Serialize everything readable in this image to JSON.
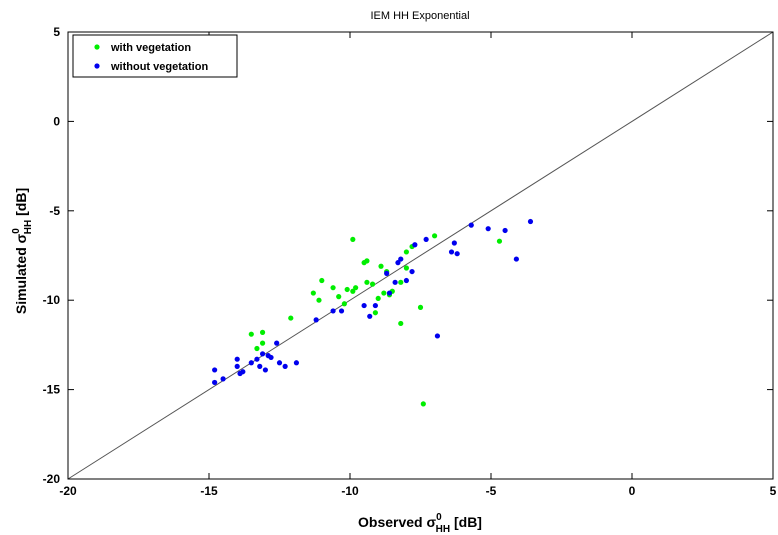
{
  "chart_data": {
    "type": "scatter",
    "title": "IEM HH Exponential",
    "xlabel": {
      "prefix": "Observed ",
      "symbol": "σ",
      "sup": "0",
      "sub": "HH",
      "suffix": " [dB]"
    },
    "ylabel": {
      "prefix": "Simulated ",
      "symbol": "σ",
      "sup": "0",
      "sub": "HH",
      "suffix": " [dB]"
    },
    "xlim": [
      -20,
      5
    ],
    "ylim": [
      -20,
      5
    ],
    "xticks": [
      -20,
      -15,
      -10,
      -5,
      0,
      5
    ],
    "yticks": [
      -20,
      -15,
      -10,
      -5,
      0,
      5
    ],
    "grid": false,
    "legend_position": "top-left",
    "reference_line": {
      "type": "1:1",
      "color": "#555555"
    },
    "series": [
      {
        "name": "with vegetation",
        "color": "#00ee00",
        "points": [
          [
            -13.5,
            -11.9
          ],
          [
            -13.3,
            -12.7
          ],
          [
            -13.1,
            -11.8
          ],
          [
            -13.1,
            -12.4
          ],
          [
            -12.1,
            -11.0
          ],
          [
            -11.3,
            -9.6
          ],
          [
            -11.1,
            -10.0
          ],
          [
            -11.0,
            -8.9
          ],
          [
            -10.6,
            -9.3
          ],
          [
            -10.4,
            -9.8
          ],
          [
            -10.2,
            -10.2
          ],
          [
            -10.1,
            -9.4
          ],
          [
            -9.9,
            -9.5
          ],
          [
            -9.9,
            -6.6
          ],
          [
            -9.8,
            -9.3
          ],
          [
            -9.5,
            -7.9
          ],
          [
            -9.4,
            -9.0
          ],
          [
            -9.4,
            -7.8
          ],
          [
            -9.2,
            -9.1
          ],
          [
            -9.1,
            -10.7
          ],
          [
            -9.0,
            -9.9
          ],
          [
            -8.9,
            -8.1
          ],
          [
            -8.8,
            -9.6
          ],
          [
            -8.7,
            -8.4
          ],
          [
            -8.6,
            -9.7
          ],
          [
            -8.5,
            -9.5
          ],
          [
            -8.2,
            -9.0
          ],
          [
            -8.2,
            -11.3
          ],
          [
            -8.0,
            -8.2
          ],
          [
            -8.0,
            -7.3
          ],
          [
            -7.8,
            -7.0
          ],
          [
            -7.5,
            -10.4
          ],
          [
            -7.4,
            -15.8
          ],
          [
            -7.0,
            -6.4
          ],
          [
            -4.7,
            -6.7
          ]
        ]
      },
      {
        "name": "without vegetation",
        "color": "#0000ee",
        "points": [
          [
            -14.8,
            -13.9
          ],
          [
            -14.8,
            -14.6
          ],
          [
            -14.5,
            -14.4
          ],
          [
            -14.0,
            -13.3
          ],
          [
            -14.0,
            -13.7
          ],
          [
            -13.9,
            -14.1
          ],
          [
            -13.8,
            -14.0
          ],
          [
            -13.5,
            -13.5
          ],
          [
            -13.3,
            -13.3
          ],
          [
            -13.2,
            -13.7
          ],
          [
            -13.1,
            -13.0
          ],
          [
            -13.0,
            -13.9
          ],
          [
            -12.9,
            -13.1
          ],
          [
            -12.8,
            -13.2
          ],
          [
            -12.6,
            -12.4
          ],
          [
            -12.5,
            -13.5
          ],
          [
            -12.3,
            -13.7
          ],
          [
            -11.9,
            -13.5
          ],
          [
            -11.2,
            -11.1
          ],
          [
            -10.6,
            -10.6
          ],
          [
            -10.3,
            -10.6
          ],
          [
            -9.5,
            -10.3
          ],
          [
            -9.3,
            -10.9
          ],
          [
            -9.1,
            -10.3
          ],
          [
            -8.7,
            -8.5
          ],
          [
            -8.6,
            -9.6
          ],
          [
            -8.4,
            -9.0
          ],
          [
            -8.3,
            -7.9
          ],
          [
            -8.2,
            -7.7
          ],
          [
            -8.0,
            -8.9
          ],
          [
            -7.8,
            -8.4
          ],
          [
            -7.7,
            -6.9
          ],
          [
            -7.3,
            -6.6
          ],
          [
            -6.9,
            -12.0
          ],
          [
            -6.4,
            -7.3
          ],
          [
            -6.3,
            -6.8
          ],
          [
            -6.2,
            -7.4
          ],
          [
            -5.7,
            -5.8
          ],
          [
            -5.1,
            -6.0
          ],
          [
            -4.5,
            -6.1
          ],
          [
            -4.1,
            -7.7
          ],
          [
            -3.6,
            -5.6
          ]
        ]
      }
    ]
  }
}
